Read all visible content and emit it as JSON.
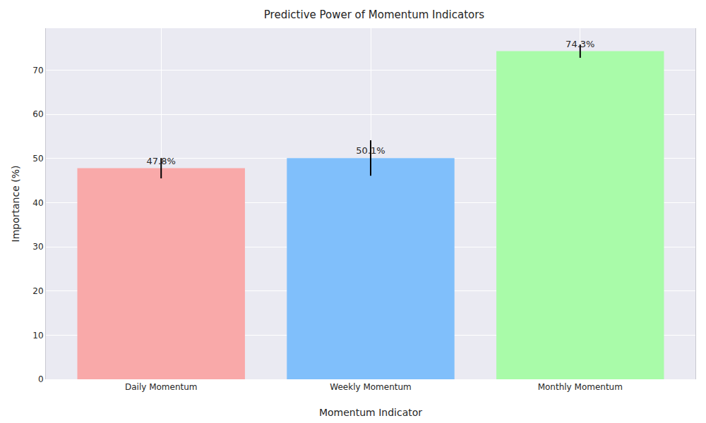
{
  "chart_data": {
    "type": "bar",
    "title": "Predictive Power of Momentum Indicators",
    "x_label": "Momentum Indicator",
    "y_label": "Importance (%)",
    "categories": [
      "Daily Momentum",
      "Weekly Momentum",
      "Monthly Momentum"
    ],
    "values": [
      47.8,
      50.1,
      74.3
    ],
    "value_labels": [
      "47.8%",
      "50.1%",
      "74.3%"
    ],
    "errors": [
      2.3,
      4.0,
      1.5
    ],
    "colors": [
      "#f9a9a9",
      "#80bffb",
      "#a9fba9"
    ],
    "ylim": [
      0,
      79.5
    ],
    "yticks": [
      0,
      10,
      20,
      30,
      40,
      50,
      60,
      70
    ],
    "grid": true,
    "data_labels": true
  }
}
